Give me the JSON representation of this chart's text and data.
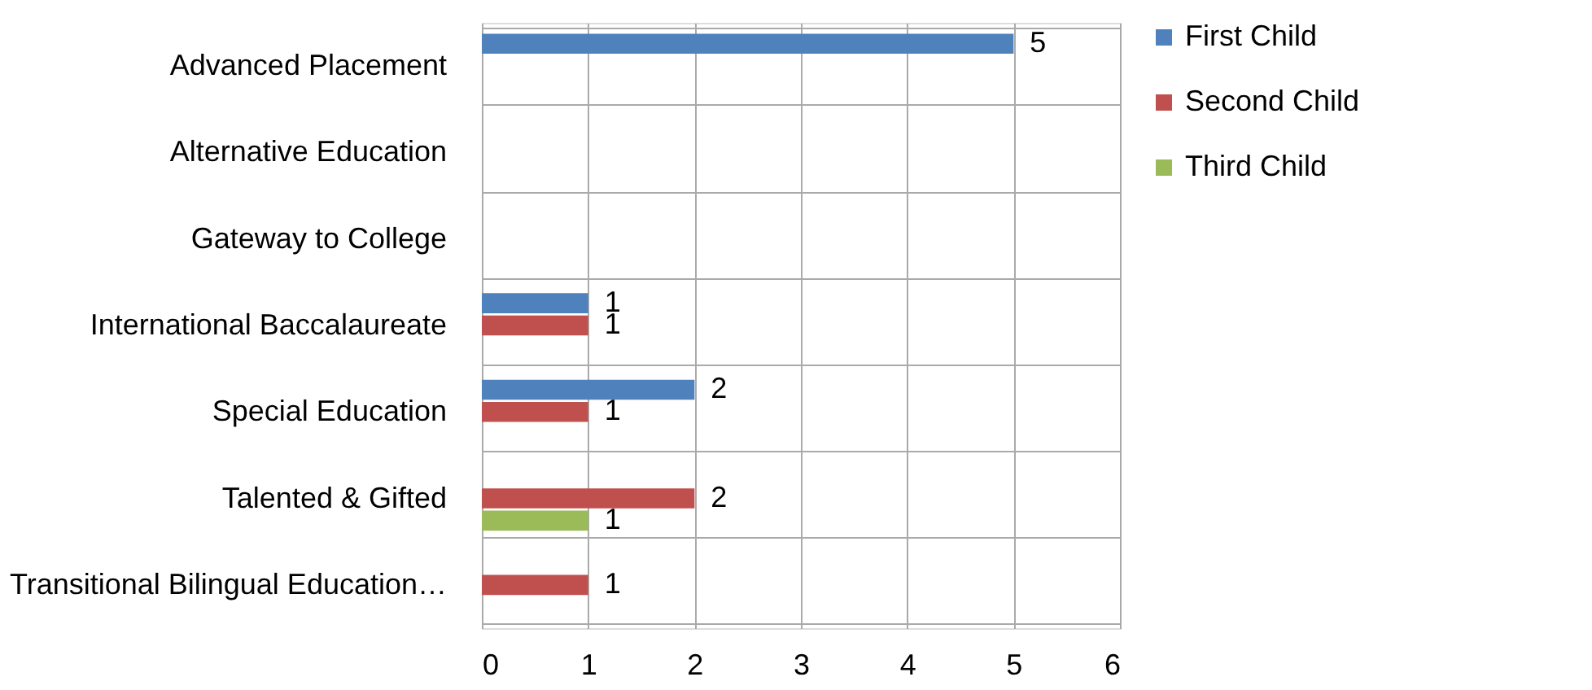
{
  "chart_data": {
    "type": "bar",
    "orientation": "horizontal",
    "categories": [
      "Advanced Placement",
      "Alternative Education",
      "Gateway to College",
      "International Baccalaureate",
      "Special Education",
      "Talented & Gifted",
      "Transitional Bilingual Education…"
    ],
    "series": [
      {
        "name": "First Child",
        "color": "#4f81bd",
        "values": [
          5,
          null,
          null,
          1,
          2,
          null,
          null
        ]
      },
      {
        "name": "Second Child",
        "color": "#c0504d",
        "values": [
          null,
          null,
          null,
          1,
          1,
          2,
          1
        ]
      },
      {
        "name": "Third Child",
        "color": "#9bbb59",
        "values": [
          null,
          null,
          null,
          null,
          null,
          1,
          null
        ]
      }
    ],
    "xlim": [
      0,
      6
    ],
    "xticks": [
      0,
      1,
      2,
      3,
      4,
      5,
      6
    ],
    "grid": true,
    "legend": "right",
    "data_labels": true
  }
}
